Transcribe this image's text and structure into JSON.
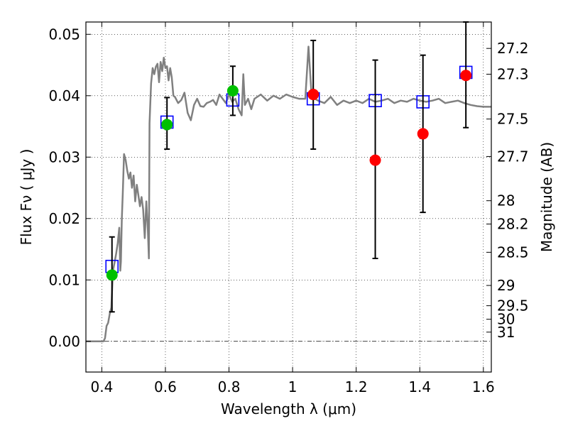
{
  "chart_data": {
    "type": "scatter",
    "xlabel": "Wavelength  λ (μm)",
    "ylabel": "Flux  Fν  ( μJy )",
    "y2label": "Magnitude (AB)",
    "xlim": [
      0.35,
      1.625
    ],
    "ylim": [
      -0.005,
      0.052
    ],
    "grid": true,
    "x_ticks": [
      0.4,
      0.6,
      0.8,
      1.0,
      1.2,
      1.4,
      1.6
    ],
    "x_tick_labels": [
      "0.4",
      "0.6",
      "0.8",
      "1",
      "1.2",
      "1.4",
      "1.6"
    ],
    "y_ticks": [
      0.0,
      0.01,
      0.02,
      0.03,
      0.04,
      0.05
    ],
    "y_tick_labels": [
      "0.00",
      "0.01",
      "0.02",
      "0.03",
      "0.04",
      "0.05"
    ],
    "mag_ticks": [
      {
        "label": "27.2",
        "flux": 0.0477
      },
      {
        "label": "27.3",
        "flux": 0.0435
      },
      {
        "label": "27.5",
        "flux": 0.0362
      },
      {
        "label": "27.7",
        "flux": 0.0301
      },
      {
        "label": "28",
        "flux": 0.0229
      },
      {
        "label": "28.2",
        "flux": 0.0191
      },
      {
        "label": "28.5",
        "flux": 0.0145
      },
      {
        "label": "29",
        "flux": 0.0091
      },
      {
        "label": "29.5",
        "flux": 0.0058
      },
      {
        "label": "30",
        "flux": 0.0036
      },
      {
        "label": "31",
        "flux": 0.0015
      }
    ],
    "series": [
      {
        "kind": "line",
        "color": "#808080",
        "x": [
          0.35,
          0.405,
          0.41,
          0.415,
          0.42,
          0.425,
          0.43,
          0.435,
          0.44,
          0.445,
          0.45,
          0.455,
          0.458,
          0.46,
          0.463,
          0.466,
          0.47,
          0.475,
          0.48,
          0.485,
          0.49,
          0.495,
          0.5,
          0.505,
          0.51,
          0.515,
          0.52,
          0.525,
          0.53,
          0.535,
          0.54,
          0.545,
          0.548,
          0.55,
          0.555,
          0.56,
          0.565,
          0.57,
          0.575,
          0.58,
          0.585,
          0.59,
          0.595,
          0.6,
          0.605,
          0.61,
          0.615,
          0.62,
          0.625,
          0.63,
          0.64,
          0.65,
          0.66,
          0.67,
          0.68,
          0.69,
          0.7,
          0.71,
          0.72,
          0.73,
          0.74,
          0.75,
          0.76,
          0.77,
          0.78,
          0.79,
          0.8,
          0.81,
          0.82,
          0.83,
          0.84,
          0.845,
          0.85,
          0.86,
          0.87,
          0.88,
          0.9,
          0.92,
          0.94,
          0.96,
          0.98,
          1.0,
          1.02,
          1.04,
          1.05,
          1.06,
          1.08,
          1.1,
          1.12,
          1.14,
          1.16,
          1.18,
          1.2,
          1.22,
          1.24,
          1.26,
          1.28,
          1.3,
          1.32,
          1.34,
          1.36,
          1.38,
          1.4,
          1.42,
          1.44,
          1.46,
          1.48,
          1.5,
          1.52,
          1.54,
          1.56,
          1.58,
          1.6,
          1.625
        ],
        "y": [
          0.0,
          0.0,
          0.0005,
          0.0025,
          0.003,
          0.0045,
          0.0055,
          0.0115,
          0.0128,
          0.0142,
          0.016,
          0.0185,
          0.0115,
          0.013,
          0.02,
          0.024,
          0.0305,
          0.0295,
          0.0278,
          0.0265,
          0.0275,
          0.025,
          0.027,
          0.0228,
          0.0255,
          0.0238,
          0.022,
          0.0235,
          0.0215,
          0.0168,
          0.0228,
          0.018,
          0.0135,
          0.0355,
          0.042,
          0.0445,
          0.0435,
          0.0447,
          0.0452,
          0.0422,
          0.0455,
          0.044,
          0.0462,
          0.0445,
          0.0448,
          0.0425,
          0.0445,
          0.043,
          0.04,
          0.0398,
          0.0388,
          0.0393,
          0.0405,
          0.0372,
          0.036,
          0.0385,
          0.0395,
          0.0383,
          0.0382,
          0.0388,
          0.039,
          0.0393,
          0.0385,
          0.0402,
          0.0395,
          0.0388,
          0.0402,
          0.039,
          0.0395,
          0.0378,
          0.0368,
          0.0435,
          0.0385,
          0.0395,
          0.0378,
          0.0395,
          0.0402,
          0.0392,
          0.04,
          0.0395,
          0.0402,
          0.0398,
          0.0395,
          0.0395,
          0.048,
          0.0398,
          0.0392,
          0.0388,
          0.0398,
          0.0385,
          0.0392,
          0.0388,
          0.0392,
          0.0388,
          0.0395,
          0.039,
          0.0392,
          0.0395,
          0.0388,
          0.0392,
          0.039,
          0.0395,
          0.0392,
          0.039,
          0.0392,
          0.0395,
          0.0388,
          0.039,
          0.0392,
          0.0388,
          0.0385,
          0.0383,
          0.0382,
          0.0382
        ]
      },
      {
        "kind": "open_squares",
        "color": "#0000ff",
        "x": [
          0.432,
          0.605,
          0.812,
          1.065,
          1.26,
          1.41,
          1.545
        ],
        "y": [
          0.0122,
          0.0357,
          0.0393,
          0.0395,
          0.0392,
          0.039,
          0.0438
        ]
      },
      {
        "kind": "green_points",
        "color": "#00c000",
        "x": [
          0.432,
          0.605,
          0.812
        ],
        "y": [
          0.0108,
          0.0353,
          0.0408
        ],
        "yerr_low": [
          0.0048,
          0.0313,
          0.0368
        ],
        "yerr_high": [
          0.017,
          0.0397,
          0.0448
        ]
      },
      {
        "kind": "red_points",
        "color": "#ff0000",
        "x": [
          1.065,
          1.26,
          1.41,
          1.545
        ],
        "y": [
          0.0402,
          0.0295,
          0.0338,
          0.0433
        ],
        "yerr_low": [
          0.0313,
          0.0135,
          0.021,
          0.0348
        ],
        "yerr_high": [
          0.049,
          0.0458,
          0.0466,
          0.052
        ]
      }
    ]
  }
}
